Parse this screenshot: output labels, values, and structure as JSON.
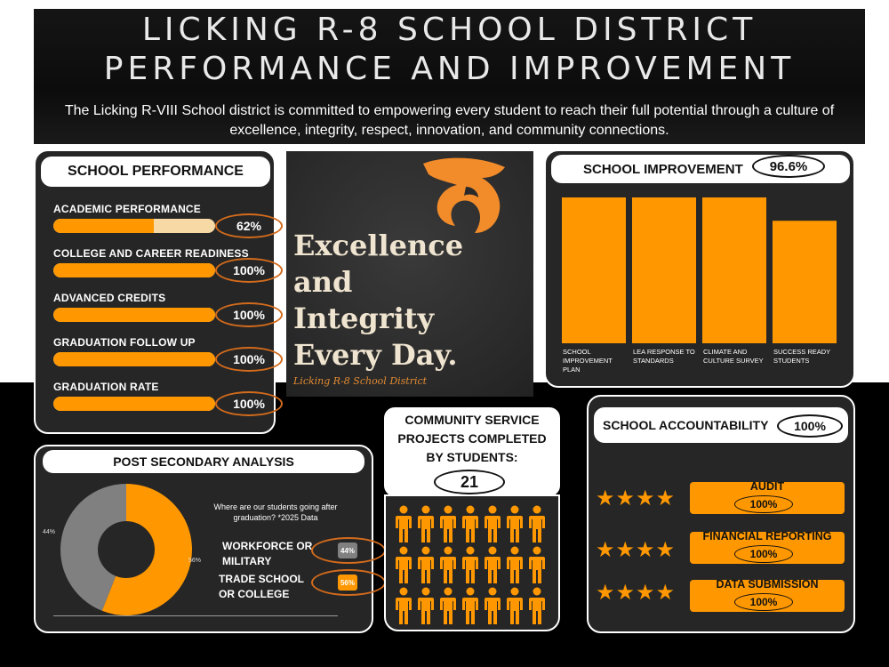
{
  "header": {
    "title_line1": "LICKING R-8 SCHOOL DISTRICT",
    "title_line2": "PERFORMANCE AND IMPROVEMENT",
    "subtitle": "The Licking R-VIII School district is committed to empowering every student to reach their full potential through a culture of excellence, integrity, respect, innovation, and community connections."
  },
  "performance": {
    "heading": "SCHOOL PERFORMANCE",
    "items": [
      {
        "label": "ACADEMIC PERFORMANCE",
        "pct": "62%",
        "value": 62
      },
      {
        "label": "COLLEGE AND CAREER READINESS",
        "pct": "100%",
        "value": 100
      },
      {
        "label": "ADVANCED CREDITS",
        "pct": "100%",
        "value": 100
      },
      {
        "label": "GRADUATION FOLLOW UP",
        "pct": "100%",
        "value": 100
      },
      {
        "label": "GRADUATION RATE",
        "pct": "100%",
        "value": 100
      }
    ]
  },
  "motto": {
    "text_line1": "Excellence",
    "text_line2": "and",
    "text_line3": "Integrity",
    "text_line4": "Every Day.",
    "sub": "Licking R-8 School District",
    "logo_icon": "wildcat-logo-icon"
  },
  "improvement": {
    "heading": "SCHOOL IMPROVEMENT",
    "pct": "96.6%"
  },
  "chart_data": {
    "type": "bar",
    "categories": [
      "SCHOOL IMPROVEMENT PLAN",
      "LEA RESPONSE TO STANDARDS",
      "CLIMATE AND CULTURE SURVEY",
      "SUCCESS READY STUDENTS"
    ],
    "category_lines": [
      [
        "SCHOOL",
        "IMPROVEMENT",
        "PLAN"
      ],
      [
        "LEA RESPONSE TO",
        "STANDARDS"
      ],
      [
        "CLIMATE AND",
        "CULTURE SURVEY"
      ],
      [
        "SUCCESS READY",
        "STUDENTS"
      ]
    ],
    "values": [
      100,
      100,
      100,
      84
    ],
    "ylim": [
      0,
      100
    ],
    "color": "#ff9800"
  },
  "post_secondary": {
    "heading": "POST SECONDARY ANALYSIS",
    "question": "Where are our students going after graduation? *2025 Data",
    "slices": [
      {
        "label_line1": "WORKFORCE OR",
        "label_line2": "MILITARY",
        "pct": "44%",
        "value": 44,
        "color": "#808080"
      },
      {
        "label_line1": "TRADE SCHOOL",
        "label_line2": "OR COLLEGE",
        "pct": "56%",
        "value": 56,
        "color": "#ff9800"
      }
    ]
  },
  "community": {
    "heading_line1": "COMMUNITY SERVICE",
    "heading_line2": "PROJECTS COMPLETED",
    "heading_line3": "BY STUDENTS:",
    "count": "21",
    "people_icon": "person-icon",
    "people_count": 21
  },
  "accountability": {
    "heading": "SCHOOL ACCOUNTABILITY",
    "pct": "100%",
    "stars": "★★★★",
    "items": [
      {
        "label": "AUDIT",
        "pct": "100%"
      },
      {
        "label": "FINANCIAL REPORTING",
        "pct": "100%"
      },
      {
        "label": "DATA SUBMISSION",
        "pct": "100%"
      }
    ]
  }
}
